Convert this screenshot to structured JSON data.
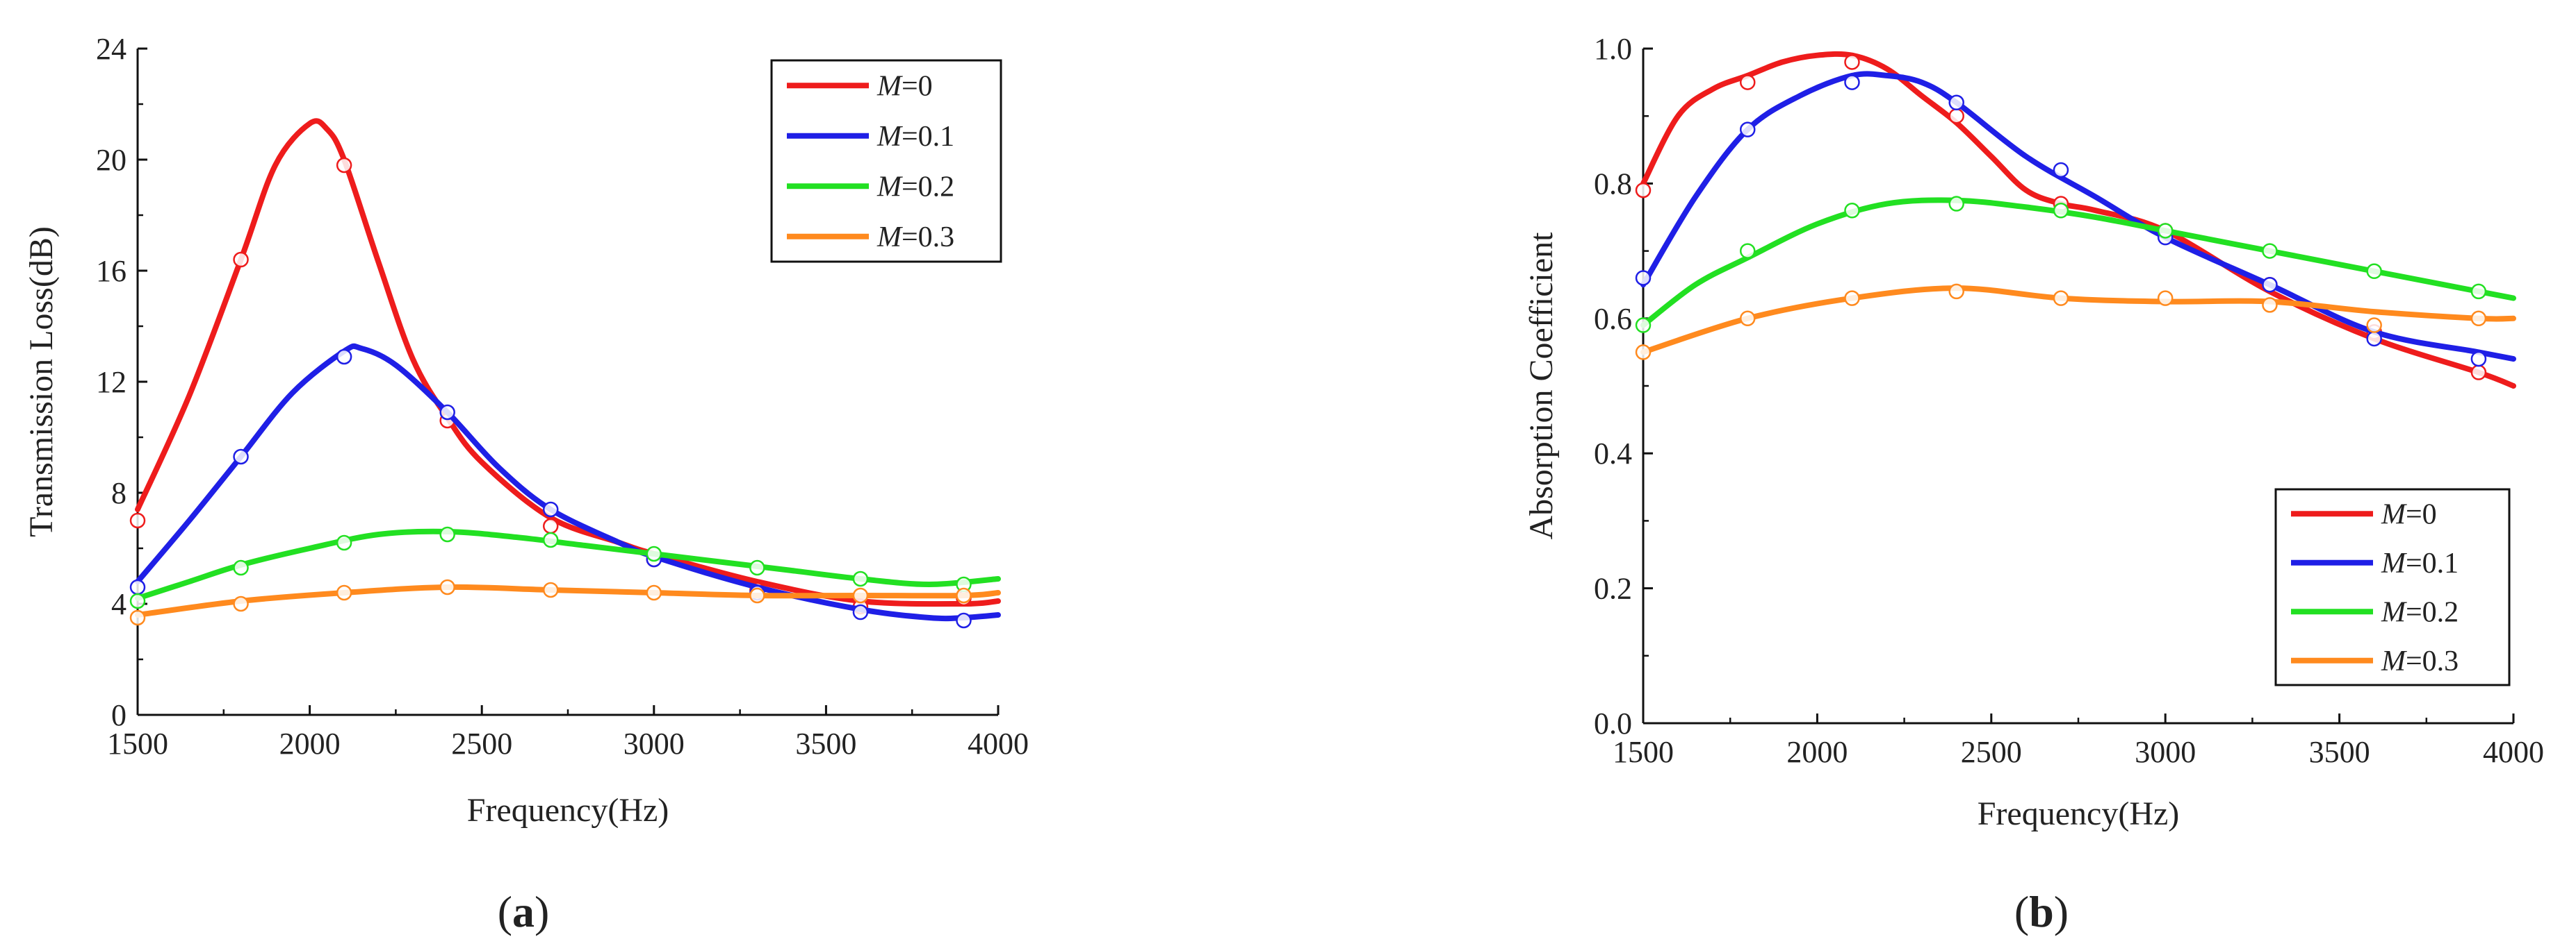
{
  "chart_data": [
    {
      "type": "line",
      "panel_label": "(a)",
      "panel_letter": "a",
      "xlabel": "Frequency(Hz)",
      "ylabel": "Transmission Loss(dB)",
      "xlim": [
        1500,
        4000
      ],
      "ylim": [
        0,
        24
      ],
      "xticks": [
        1500,
        2000,
        2500,
        3000,
        3500,
        4000
      ],
      "yticks": [
        0,
        4,
        8,
        12,
        16,
        20,
        24
      ],
      "legend_position": "top-right",
      "series": [
        {
          "name": "M=0",
          "name_italic": "M",
          "name_rest": "=0",
          "color": "#ee1c1c",
          "curve": [
            [
              1500,
              7.4
            ],
            [
              1650,
              11.5
            ],
            [
              1800,
              16.4
            ],
            [
              1900,
              19.8
            ],
            [
              2000,
              21.3
            ],
            [
              2050,
              21.1
            ],
            [
              2100,
              20.0
            ],
            [
              2200,
              16.3
            ],
            [
              2300,
              12.8
            ],
            [
              2400,
              10.7
            ],
            [
              2500,
              9.1
            ],
            [
              2700,
              7.1
            ],
            [
              2900,
              6.2
            ],
            [
              3000,
              5.8
            ],
            [
              3300,
              4.8
            ],
            [
              3600,
              4.1
            ],
            [
              3900,
              4.0
            ],
            [
              4000,
              4.1
            ]
          ],
          "points": [
            [
              1500,
              7.0
            ],
            [
              1800,
              16.4
            ],
            [
              2100,
              19.8
            ],
            [
              2400,
              10.6
            ],
            [
              2700,
              6.8
            ],
            [
              3000,
              5.6
            ],
            [
              3300,
              4.5
            ],
            [
              3600,
              3.9
            ],
            [
              3900,
              4.2
            ]
          ]
        },
        {
          "name": "M=0.1",
          "name_italic": "M",
          "name_rest": "=0.1",
          "color": "#1f1fe6",
          "curve": [
            [
              1500,
              4.8
            ],
            [
              1650,
              7.0
            ],
            [
              1800,
              9.3
            ],
            [
              1950,
              11.6
            ],
            [
              2100,
              13.1
            ],
            [
              2150,
              13.2
            ],
            [
              2250,
              12.6
            ],
            [
              2400,
              10.9
            ],
            [
              2550,
              8.9
            ],
            [
              2700,
              7.4
            ],
            [
              2900,
              6.2
            ],
            [
              3000,
              5.7
            ],
            [
              3300,
              4.6
            ],
            [
              3600,
              3.8
            ],
            [
              3800,
              3.5
            ],
            [
              3900,
              3.5
            ],
            [
              4000,
              3.6
            ]
          ],
          "points": [
            [
              1500,
              4.6
            ],
            [
              1800,
              9.3
            ],
            [
              2100,
              12.9
            ],
            [
              2400,
              10.9
            ],
            [
              2700,
              7.4
            ],
            [
              3000,
              5.6
            ],
            [
              3300,
              4.4
            ],
            [
              3600,
              3.7
            ],
            [
              3900,
              3.4
            ]
          ]
        },
        {
          "name": "M=0.2",
          "name_italic": "M",
          "name_rest": "=0.2",
          "color": "#22e022",
          "curve": [
            [
              1500,
              4.2
            ],
            [
              1650,
              4.8
            ],
            [
              1800,
              5.4
            ],
            [
              2000,
              6.0
            ],
            [
              2200,
              6.5
            ],
            [
              2400,
              6.6
            ],
            [
              2600,
              6.4
            ],
            [
              2800,
              6.1
            ],
            [
              3000,
              5.8
            ],
            [
              3200,
              5.5
            ],
            [
              3400,
              5.2
            ],
            [
              3600,
              4.9
            ],
            [
              3800,
              4.7
            ],
            [
              4000,
              4.9
            ]
          ],
          "points": [
            [
              1500,
              4.1
            ],
            [
              1800,
              5.3
            ],
            [
              2100,
              6.2
            ],
            [
              2400,
              6.5
            ],
            [
              2700,
              6.3
            ],
            [
              3000,
              5.8
            ],
            [
              3300,
              5.3
            ],
            [
              3600,
              4.9
            ],
            [
              3900,
              4.7
            ]
          ]
        },
        {
          "name": "M=0.3",
          "name_italic": "M",
          "name_rest": "=0.3",
          "color": "#ff8a1e",
          "curve": [
            [
              1500,
              3.6
            ],
            [
              1800,
              4.1
            ],
            [
              2100,
              4.4
            ],
            [
              2400,
              4.6
            ],
            [
              2700,
              4.5
            ],
            [
              3000,
              4.4
            ],
            [
              3300,
              4.3
            ],
            [
              3600,
              4.3
            ],
            [
              3900,
              4.3
            ],
            [
              4000,
              4.4
            ]
          ],
          "points": [
            [
              1500,
              3.5
            ],
            [
              1800,
              4.0
            ],
            [
              2100,
              4.4
            ],
            [
              2400,
              4.6
            ],
            [
              2700,
              4.5
            ],
            [
              3000,
              4.4
            ],
            [
              3300,
              4.3
            ],
            [
              3600,
              4.3
            ],
            [
              3900,
              4.3
            ]
          ]
        }
      ]
    },
    {
      "type": "line",
      "panel_label": "(b)",
      "panel_letter": "b",
      "xlabel": "Frequency(Hz)",
      "ylabel": "Absorption Coefficient",
      "xlim": [
        1500,
        4000
      ],
      "ylim": [
        0,
        1.0
      ],
      "xticks": [
        1500,
        2000,
        2500,
        3000,
        3500,
        4000
      ],
      "yticks": [
        "0.0",
        "0.2",
        "0.4",
        "0.6",
        "0.8",
        "1.0"
      ],
      "legend_position": "bottom-right",
      "series": [
        {
          "name": "M=0",
          "name_italic": "M",
          "name_rest": "=0",
          "color": "#ee1c1c",
          "curve": [
            [
              1500,
              0.8
            ],
            [
              1600,
              0.9
            ],
            [
              1700,
              0.94
            ],
            [
              1800,
              0.96
            ],
            [
              1900,
              0.98
            ],
            [
              2000,
              0.99
            ],
            [
              2100,
              0.99
            ],
            [
              2200,
              0.97
            ],
            [
              2300,
              0.93
            ],
            [
              2400,
              0.89
            ],
            [
              2500,
              0.84
            ],
            [
              2600,
              0.79
            ],
            [
              2700,
              0.77
            ],
            [
              2800,
              0.76
            ],
            [
              3000,
              0.73
            ],
            [
              3300,
              0.64
            ],
            [
              3600,
              0.57
            ],
            [
              3900,
              0.52
            ],
            [
              4000,
              0.5
            ]
          ],
          "points": [
            [
              1500,
              0.79
            ],
            [
              1800,
              0.95
            ],
            [
              2100,
              0.98
            ],
            [
              2400,
              0.9
            ],
            [
              2700,
              0.77
            ],
            [
              3000,
              0.73
            ],
            [
              3300,
              0.65
            ],
            [
              3600,
              0.58
            ],
            [
              3900,
              0.52
            ]
          ]
        },
        {
          "name": "M=0.1",
          "name_italic": "M",
          "name_rest": "=0.1",
          "color": "#1f1fe6",
          "curve": [
            [
              1500,
              0.65
            ],
            [
              1650,
              0.78
            ],
            [
              1800,
              0.88
            ],
            [
              1950,
              0.93
            ],
            [
              2100,
              0.96
            ],
            [
              2200,
              0.96
            ],
            [
              2300,
              0.95
            ],
            [
              2400,
              0.92
            ],
            [
              2600,
              0.84
            ],
            [
              2800,
              0.78
            ],
            [
              3000,
              0.72
            ],
            [
              3300,
              0.65
            ],
            [
              3600,
              0.58
            ],
            [
              3900,
              0.55
            ],
            [
              4000,
              0.54
            ]
          ],
          "points": [
            [
              1500,
              0.66
            ],
            [
              1800,
              0.88
            ],
            [
              2100,
              0.95
            ],
            [
              2400,
              0.92
            ],
            [
              2700,
              0.82
            ],
            [
              3000,
              0.72
            ],
            [
              3300,
              0.65
            ],
            [
              3600,
              0.57
            ],
            [
              3900,
              0.54
            ]
          ]
        },
        {
          "name": "M=0.2",
          "name_italic": "M",
          "name_rest": "=0.2",
          "color": "#22e022",
          "curve": [
            [
              1500,
              0.59
            ],
            [
              1650,
              0.65
            ],
            [
              1800,
              0.69
            ],
            [
              2000,
              0.74
            ],
            [
              2200,
              0.77
            ],
            [
              2400,
              0.775
            ],
            [
              2600,
              0.765
            ],
            [
              2800,
              0.75
            ],
            [
              3000,
              0.73
            ],
            [
              3200,
              0.71
            ],
            [
              3400,
              0.69
            ],
            [
              3600,
              0.67
            ],
            [
              3800,
              0.65
            ],
            [
              4000,
              0.63
            ]
          ],
          "points": [
            [
              1500,
              0.59
            ],
            [
              1800,
              0.7
            ],
            [
              2100,
              0.76
            ],
            [
              2400,
              0.77
            ],
            [
              2700,
              0.76
            ],
            [
              3000,
              0.73
            ],
            [
              3300,
              0.7
            ],
            [
              3600,
              0.67
            ],
            [
              3900,
              0.64
            ]
          ]
        },
        {
          "name": "M=0.3",
          "name_italic": "M",
          "name_rest": "=0.3",
          "color": "#ff8a1e",
          "curve": [
            [
              1500,
              0.55
            ],
            [
              1800,
              0.6
            ],
            [
              2100,
              0.63
            ],
            [
              2400,
              0.645
            ],
            [
              2700,
              0.63
            ],
            [
              3000,
              0.625
            ],
            [
              3300,
              0.625
            ],
            [
              3600,
              0.61
            ],
            [
              3900,
              0.6
            ],
            [
              4000,
              0.6
            ]
          ],
          "points": [
            [
              1500,
              0.55
            ],
            [
              1800,
              0.6
            ],
            [
              2100,
              0.63
            ],
            [
              2400,
              0.64
            ],
            [
              2700,
              0.63
            ],
            [
              3000,
              0.63
            ],
            [
              3300,
              0.62
            ],
            [
              3600,
              0.59
            ],
            [
              3900,
              0.6
            ]
          ]
        }
      ]
    }
  ]
}
